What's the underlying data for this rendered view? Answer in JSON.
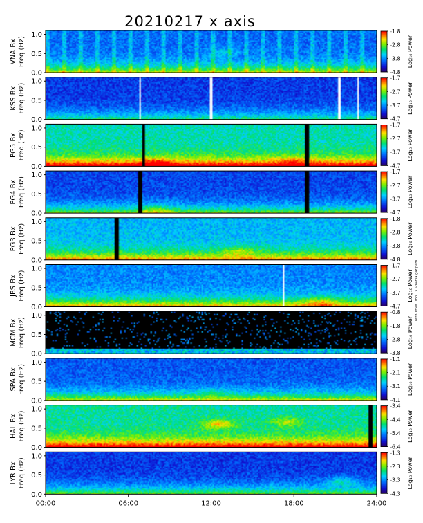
{
  "title": "20210217 x axis",
  "side_note": "with Tfive Tmp 13 Stoatsa gar pam",
  "chart_data": {
    "type": "heatmap",
    "title": "20210217 x axis",
    "x_ticks": [
      "00:00",
      "06:00",
      "12:00",
      "18:00",
      "24:00"
    ],
    "x_range_hours": [
      0,
      24
    ],
    "y_ticks": [
      "0.0",
      "0.5",
      "1.0"
    ],
    "y_range_hz": [
      0,
      1.1
    ],
    "colorbar_label": "Log₁₀ Power",
    "panels": [
      {
        "station": "VNA",
        "ylabel": "VNA Bx",
        "ylabel2": "Freq (Hz)",
        "cb_ticks": [
          "-1.8",
          "-2.8",
          "-3.8",
          "-4.8"
        ],
        "vmin": -4.8,
        "vmax": -1.8
      },
      {
        "station": "KSS",
        "ylabel": "KSS Bx",
        "ylabel2": "Freq (Hz)",
        "cb_ticks": [
          "-1.7",
          "-2.7",
          "-3.7",
          "-4.7"
        ],
        "vmin": -4.7,
        "vmax": -1.7
      },
      {
        "station": "PG5",
        "ylabel": "PG5 Bx",
        "ylabel2": "Freq (Hz)",
        "cb_ticks": [
          "-1.7",
          "-2.7",
          "-3.7",
          "-4.7"
        ],
        "vmin": -4.7,
        "vmax": -1.7
      },
      {
        "station": "PG4",
        "ylabel": "PG4 Bx",
        "ylabel2": "Freq (Hz)",
        "cb_ticks": [
          "-1.7",
          "-2.7",
          "-3.7",
          "-4.7"
        ],
        "vmin": -4.7,
        "vmax": -1.7
      },
      {
        "station": "PG3",
        "ylabel": "PG3 Bx",
        "ylabel2": "Freq (Hz)",
        "cb_ticks": [
          "-1.8",
          "-2.8",
          "-3.8",
          "-4.8"
        ],
        "vmin": -4.8,
        "vmax": -1.8
      },
      {
        "station": "JBS",
        "ylabel": "JBS Bx",
        "ylabel2": "Freq (Hz)",
        "cb_ticks": [
          "-1.7",
          "-2.7",
          "-3.7",
          "-4.7"
        ],
        "vmin": -4.7,
        "vmax": -1.7
      },
      {
        "station": "MCM",
        "ylabel": "MCM Bx",
        "ylabel2": "Freq (Hz)",
        "cb_ticks": [
          "-0.8",
          "-1.8",
          "-2.8",
          "-3.8"
        ],
        "vmin": -3.8,
        "vmax": -0.8
      },
      {
        "station": "SPA",
        "ylabel": "SPA Bx",
        "ylabel2": "Freq (Hz)",
        "cb_ticks": [
          "-1.1",
          "-2.1",
          "-3.1",
          "-4.1"
        ],
        "vmin": -4.1,
        "vmax": -1.1
      },
      {
        "station": "HAL",
        "ylabel": "HAL Bx",
        "ylabel2": "Freq (Hz)",
        "cb_ticks": [
          "-3.4",
          "-4.4",
          "-5.4",
          "-6.4"
        ],
        "vmin": -6.4,
        "vmax": -3.4
      },
      {
        "station": "LYR",
        "ylabel": "LYR Bx",
        "ylabel2": "Freq (Hz)",
        "cb_ticks": [
          "-1.3",
          "-2.3",
          "-3.3",
          "-4.3"
        ],
        "vmin": -4.3,
        "vmax": -1.3
      }
    ]
  }
}
